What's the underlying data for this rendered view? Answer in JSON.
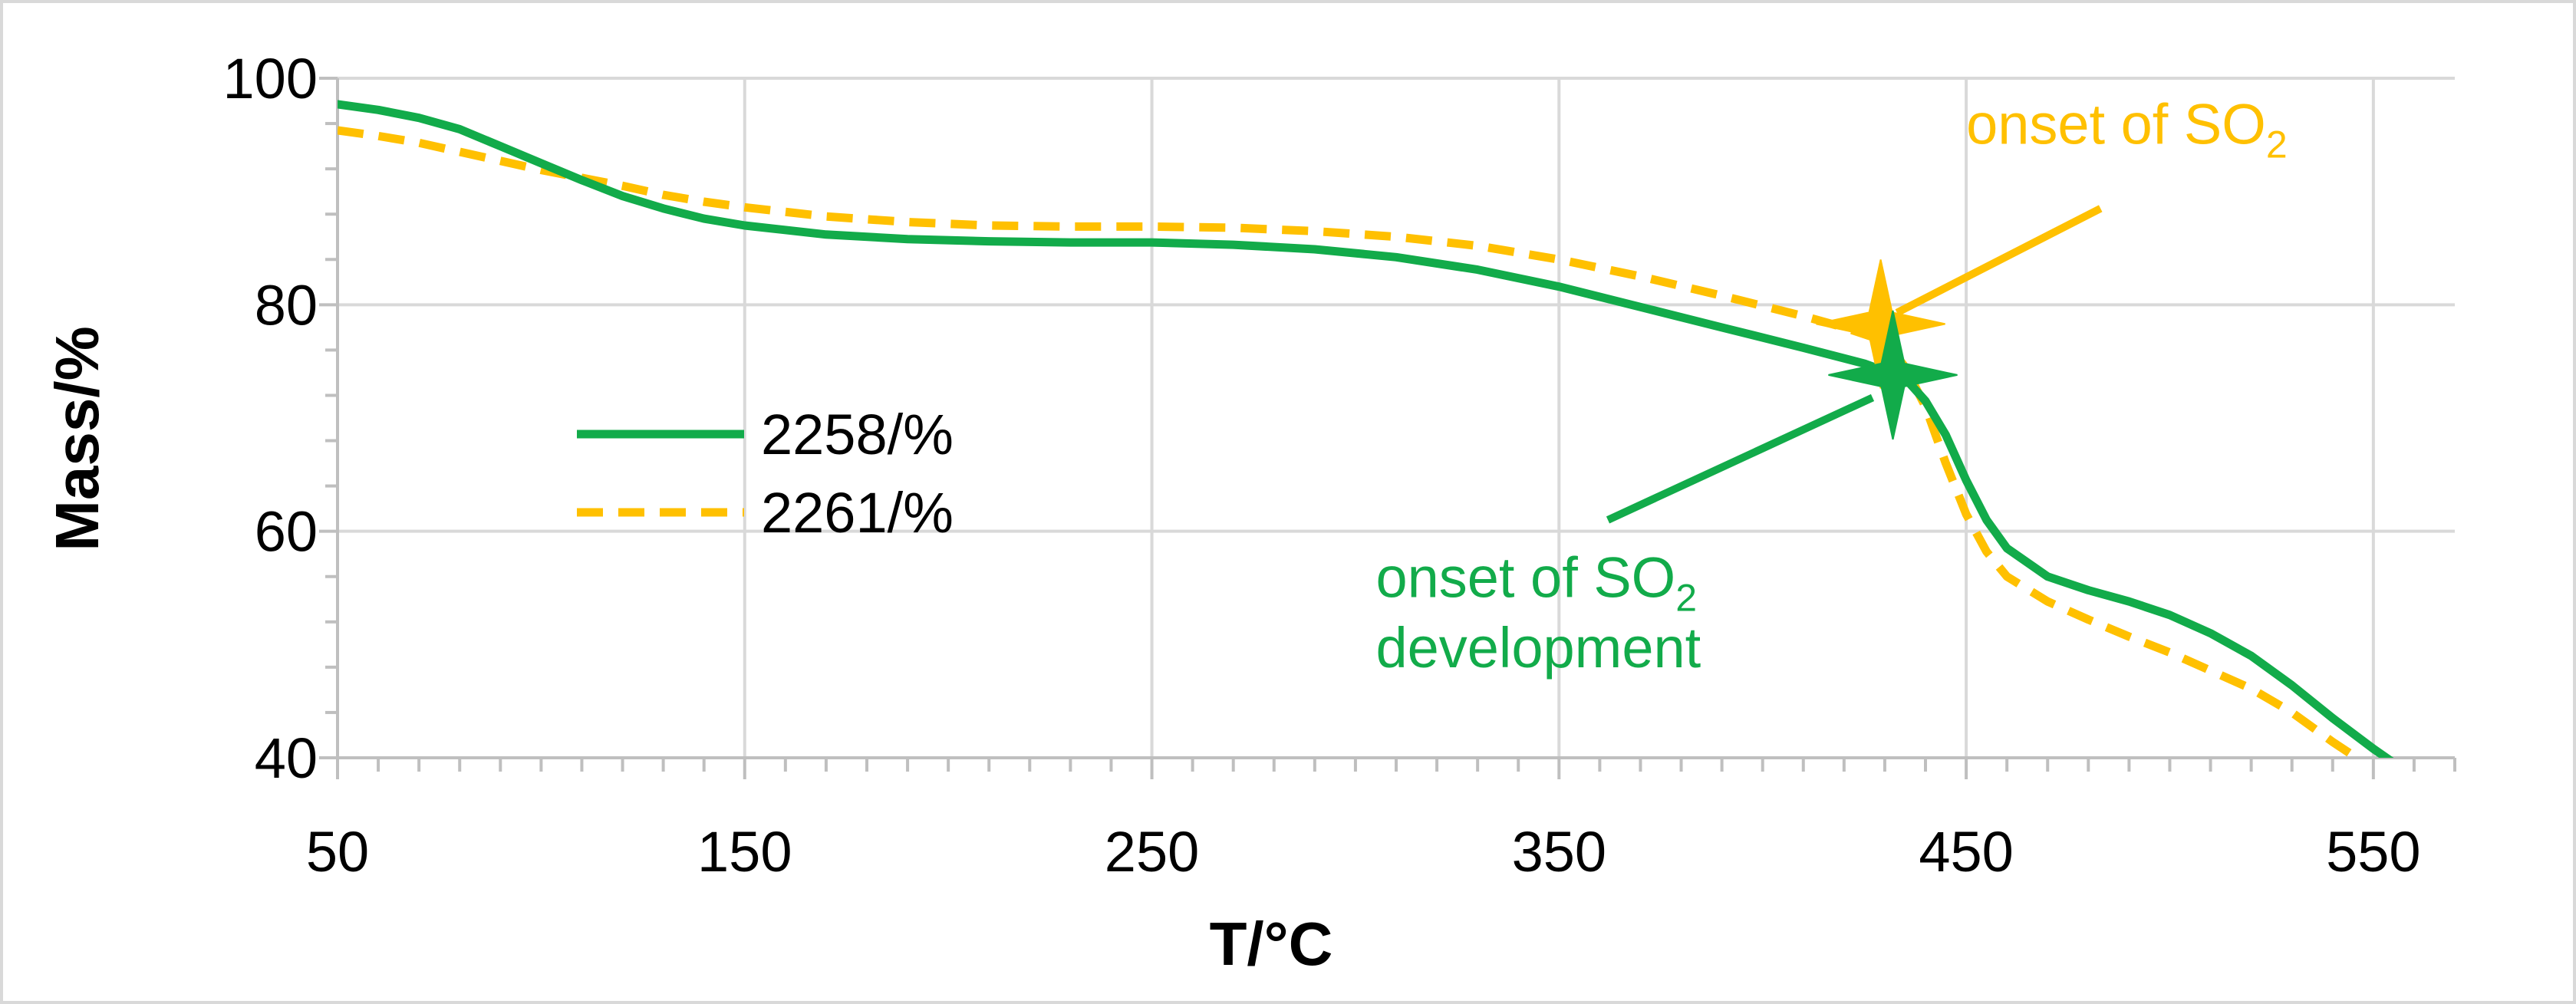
{
  "colors": {
    "series_2258": "#12AB4A",
    "series_2261": "#FFC000",
    "grid": "#D9D9D9",
    "axis": "#BFBFBF",
    "frame": "#D9D9D9"
  },
  "chart_data": {
    "type": "line",
    "title": "",
    "xlabel": "T/°C",
    "ylabel": "Mass/%",
    "xlim": [
      50,
      570
    ],
    "ylim": [
      40,
      100
    ],
    "x_ticks": [
      50,
      150,
      250,
      350,
      450,
      550
    ],
    "y_ticks": [
      40,
      60,
      80,
      100
    ],
    "x_tick_labels": [
      "50",
      "150",
      "250",
      "350",
      "450",
      "550"
    ],
    "y_tick_labels": [
      "40",
      "60",
      "80",
      "100"
    ],
    "grid": true,
    "legend_position": "middle-left",
    "series": [
      {
        "name": "2258/%",
        "style": "solid",
        "x": [
          50,
          60,
          70,
          80,
          90,
          100,
          110,
          120,
          130,
          140,
          150,
          170,
          190,
          210,
          230,
          250,
          270,
          290,
          310,
          330,
          350,
          370,
          390,
          410,
          425,
          435,
          440,
          445,
          450,
          455,
          460,
          470,
          480,
          490,
          500,
          510,
          520,
          530,
          540,
          550,
          558
        ],
        "y": [
          97.7,
          97.2,
          96.5,
          95.5,
          94.0,
          92.5,
          91.0,
          89.6,
          88.5,
          87.6,
          87.0,
          86.2,
          85.8,
          85.6,
          85.5,
          85.5,
          85.3,
          84.9,
          84.2,
          83.1,
          81.6,
          79.8,
          78.0,
          76.2,
          74.8,
          73.5,
          71.5,
          68.5,
          64.5,
          61.0,
          58.5,
          56.0,
          54.8,
          53.8,
          52.6,
          51.0,
          49.0,
          46.4,
          43.5,
          40.8,
          38.8
        ]
      },
      {
        "name": "2261/%",
        "style": "dashed",
        "x": [
          50,
          60,
          70,
          80,
          90,
          100,
          110,
          120,
          130,
          140,
          150,
          170,
          190,
          210,
          230,
          250,
          270,
          290,
          310,
          330,
          350,
          370,
          390,
          410,
          420,
          430,
          435,
          440,
          445,
          450,
          455,
          460,
          470,
          480,
          490,
          500,
          510,
          520,
          530,
          540,
          548
        ],
        "y": [
          95.4,
          94.9,
          94.3,
          93.5,
          92.7,
          91.9,
          91.2,
          90.5,
          89.7,
          89.1,
          88.6,
          87.8,
          87.3,
          87.0,
          86.9,
          86.9,
          86.8,
          86.5,
          86.0,
          85.2,
          84.0,
          82.5,
          80.8,
          79.0,
          78.0,
          76.8,
          74.5,
          71.0,
          66.0,
          61.5,
          58.2,
          56.0,
          53.8,
          52.2,
          50.7,
          49.3,
          47.7,
          46.1,
          44.0,
          41.4,
          39.5
        ]
      }
    ],
    "markers": [
      {
        "series": "2261/%",
        "x": 429,
        "y": 78.3,
        "shape": "four-point-star"
      },
      {
        "series": "2258/%",
        "x": 432,
        "y": 73.8,
        "shape": "four-point-star"
      }
    ],
    "annotations": [
      {
        "series": "2261/%",
        "text_main": "onset of SO",
        "text_sub": "2",
        "text_x": 450,
        "text_y": 94.2,
        "arrow_from": [
          483,
          88.5
        ],
        "arrow_to": [
          433,
          79.3
        ]
      },
      {
        "series": "2258/%",
        "line1_main": "onset of SO",
        "line1_sub": "2",
        "line2": "development",
        "text_x": 305,
        "text_y": 54.2,
        "text2_y": 48.0,
        "arrow_from": [
          362,
          61.0
        ],
        "arrow_to": [
          427,
          71.8
        ]
      }
    ]
  }
}
